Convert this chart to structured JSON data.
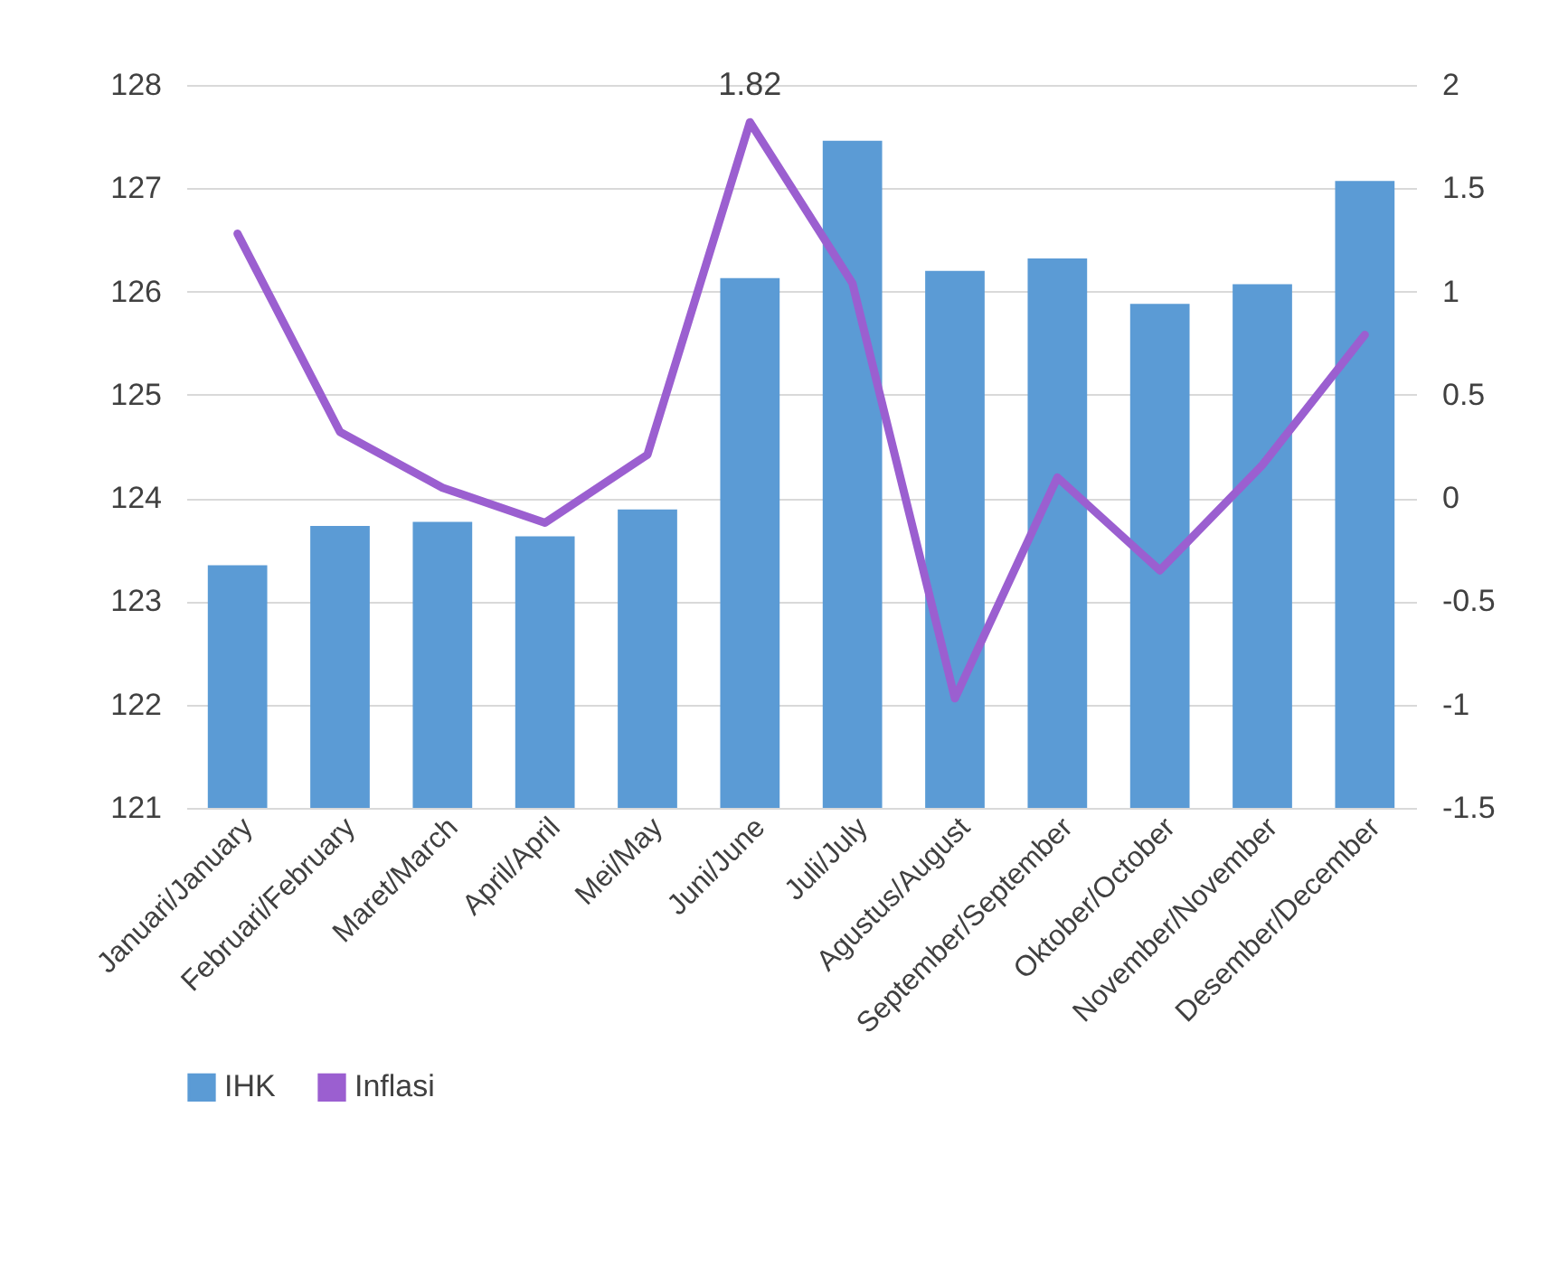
{
  "chart_data": {
    "type": "bar",
    "categories": [
      "Januari/January",
      "Februari/February",
      "Maret/March",
      "April/April",
      "Mei/May",
      "Juni/June",
      "Juli/July",
      "Agustus/August",
      "September/September",
      "Oktober/October",
      "November/November",
      "Desember/December"
    ],
    "series": [
      {
        "name": "IHK",
        "color": "#5b9bd5",
        "values": [
          123.35,
          123.73,
          123.77,
          123.63,
          123.89,
          126.13,
          127.46,
          126.2,
          126.32,
          125.88,
          126.07,
          127.07
        ]
      },
      {
        "name": "Inflasi",
        "type": "line",
        "axis": "y2",
        "color": "#9b5fd0",
        "values": [
          1.28,
          0.32,
          0.05,
          -0.12,
          0.21,
          1.82,
          1.04,
          -0.97,
          0.1,
          -0.35,
          0.16,
          0.79
        ],
        "value_labels": [
          null,
          null,
          null,
          null,
          null,
          "1.82",
          null,
          null,
          null,
          null,
          null,
          null
        ]
      }
    ],
    "ylim": [
      121,
      128
    ],
    "yticks": [
      121,
      122,
      123,
      124,
      125,
      126,
      127,
      128
    ],
    "y2lim": [
      -1.5,
      2
    ],
    "y2ticks": [
      -1.5,
      -1,
      -0.5,
      0,
      0.5,
      1,
      1.5,
      2
    ],
    "grid": "y",
    "legend": "bottom",
    "marker": "none",
    "line_style": "solid"
  }
}
